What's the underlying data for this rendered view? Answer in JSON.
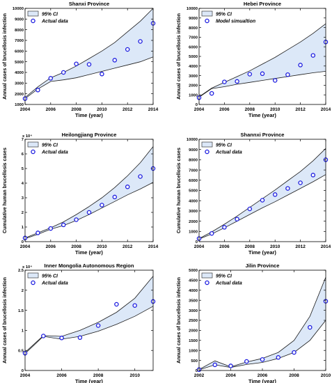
{
  "chart_data": [
    {
      "type": "line",
      "title": "Shanxi Province",
      "xlabel": "Time (year)",
      "ylabel": "Annual cases of brucellosis infection",
      "xlim": [
        2004,
        2014
      ],
      "ylim": [
        1000,
        10000
      ],
      "xticks": [
        2004,
        2006,
        2008,
        2010,
        2012,
        2014
      ],
      "yticks": [
        1000,
        2000,
        3000,
        4000,
        5000,
        6000,
        7000,
        8000,
        9000,
        10000
      ],
      "yexponent": "",
      "legend": {
        "ci": "95% CI",
        "points": "Actual data",
        "position": "top-left"
      },
      "x": [
        2004,
        2005,
        2006,
        2007,
        2008,
        2009,
        2010,
        2011,
        2012,
        2013,
        2014
      ],
      "upper": [
        1650,
        2650,
        3500,
        4000,
        4600,
        5300,
        6000,
        6800,
        7800,
        8800,
        10000
      ],
      "lower": [
        1550,
        2450,
        3150,
        3300,
        3500,
        3800,
        4100,
        4400,
        4700,
        5000,
        5450
      ],
      "points": [
        1550,
        2350,
        3450,
        4000,
        4800,
        4750,
        3850,
        5150,
        6150,
        6900,
        8600
      ]
    },
    {
      "type": "line",
      "title": "Hebei Province",
      "xlabel": "Time (year)",
      "ylabel": "Annual cases of brucellosis infection",
      "xlim": [
        2004,
        2014
      ],
      "ylim": [
        0,
        10000
      ],
      "xticks": [
        2004,
        2006,
        2008,
        2010,
        2012,
        2014
      ],
      "yticks": [
        0,
        1000,
        2000,
        3000,
        4000,
        5000,
        6000,
        7000,
        8000,
        9000,
        10000
      ],
      "yexponent": "",
      "legend": {
        "ci": "95% CI",
        "points": "Model simualtion",
        "position": "top-left"
      },
      "x": [
        2004,
        2005,
        2006,
        2007,
        2008,
        2009,
        2010,
        2011,
        2012,
        2013,
        2014
      ],
      "upper": [
        800,
        1700,
        2300,
        2900,
        3500,
        4200,
        4900,
        5700,
        6500,
        7400,
        8400
      ],
      "lower": [
        750,
        1650,
        1850,
        2100,
        2300,
        2500,
        2700,
        2900,
        3100,
        3300,
        3450
      ],
      "points": [
        700,
        1150,
        2350,
        2400,
        3150,
        3200,
        2500,
        3100,
        4100,
        5100,
        6500
      ]
    },
    {
      "type": "line",
      "title": "Heilongjiang Province",
      "xlabel": "Time (year)",
      "ylabel": "Cumulative human brucellosis cases",
      "xlim": [
        2004,
        2014
      ],
      "ylim": [
        0,
        7
      ],
      "xticks": [
        2004,
        2006,
        2008,
        2010,
        2012,
        2014
      ],
      "yticks": [
        0,
        1,
        2,
        3,
        4,
        5,
        6,
        7
      ],
      "yexponent": "x 10⁴",
      "legend": {
        "ci": "95% CI",
        "points": "Actual data",
        "position": "top-left"
      },
      "x": [
        2004,
        2005,
        2006,
        2007,
        2008,
        2009,
        2010,
        2011,
        2012,
        2013,
        2014
      ],
      "upper": [
        0.25,
        0.6,
        0.95,
        1.35,
        1.85,
        2.4,
        3.0,
        3.7,
        4.5,
        5.4,
        6.5
      ],
      "lower": [
        0.2,
        0.5,
        0.85,
        1.1,
        1.45,
        1.85,
        2.3,
        2.75,
        3.2,
        3.6,
        4.05
      ],
      "points": [
        0.25,
        0.6,
        0.9,
        1.15,
        1.5,
        2.0,
        2.5,
        3.05,
        3.75,
        4.45,
        5.0
      ]
    },
    {
      "type": "line",
      "title": "Shannxi Province",
      "xlabel": "Time (year)",
      "ylabel": "Cumulative human brucellosis cases",
      "xlim": [
        2004,
        2014
      ],
      "ylim": [
        0,
        10000
      ],
      "xticks": [
        2004,
        2006,
        2008,
        2010,
        2012,
        2014
      ],
      "yticks": [
        0,
        1000,
        2000,
        3000,
        4000,
        5000,
        6000,
        7000,
        8000,
        9000,
        10000
      ],
      "yexponent": "",
      "legend": {
        "ci": "95% CI",
        "points": "Actual data",
        "position": "top-left"
      },
      "x": [
        2004,
        2005,
        2006,
        2007,
        2008,
        2009,
        2010,
        2011,
        2012,
        2013,
        2014
      ],
      "upper": [
        300,
        950,
        1700,
        2500,
        3350,
        4200,
        5050,
        5950,
        6850,
        7900,
        9100
      ],
      "lower": [
        250,
        750,
        1350,
        2000,
        2650,
        3300,
        3900,
        4550,
        5200,
        5850,
        6550
      ],
      "points": [
        300,
        800,
        1400,
        2200,
        3200,
        4050,
        4600,
        5200,
        5750,
        6500,
        8000
      ]
    },
    {
      "type": "line",
      "title": "Inner Mongolia Autonomous Region",
      "xlabel": "Time (year)",
      "ylabel": "Annual cases of brucellosis infection",
      "xlim": [
        2004,
        2011
      ],
      "ylim": [
        0,
        2.5
      ],
      "xticks": [
        2004,
        2006,
        2008,
        2010
      ],
      "yticks": [
        0,
        0.5,
        1,
        1.5,
        2,
        2.5
      ],
      "yexponent": "x 10⁴",
      "legend": {
        "ci": "95% CI",
        "points": "Actual data",
        "position": "top-left"
      },
      "x": [
        2004,
        2005,
        2006,
        2007,
        2008,
        2009,
        2010,
        2011
      ],
      "upper": [
        0.45,
        0.87,
        0.85,
        1.0,
        1.2,
        1.45,
        1.8,
        2.35
      ],
      "lower": [
        0.42,
        0.85,
        0.78,
        0.85,
        0.98,
        1.15,
        1.35,
        1.6
      ],
      "points": [
        0.43,
        0.86,
        0.81,
        0.82,
        1.12,
        1.65,
        1.62,
        1.72
      ]
    },
    {
      "type": "line",
      "title": "Jilin Province",
      "xlabel": "Time (year)",
      "ylabel": "Annual cases of brucellosis infection",
      "xlim": [
        2002,
        2010
      ],
      "ylim": [
        0,
        5000
      ],
      "xticks": [
        2002,
        2004,
        2006,
        2008,
        2010
      ],
      "yticks": [
        0,
        500,
        1000,
        1500,
        2000,
        2500,
        3000,
        3500,
        4000,
        4500,
        5000
      ],
      "yexponent": "",
      "legend": {
        "ci": "95% CI",
        "points": "Actual data",
        "position": "top-left"
      },
      "x": [
        2002,
        2003,
        2004,
        2005,
        2006,
        2007,
        2008,
        2009,
        2010
      ],
      "upper": [
        50,
        480,
        180,
        420,
        600,
        900,
        1500,
        2700,
        4650
      ],
      "lower": [
        30,
        280,
        150,
        300,
        400,
        600,
        900,
        1500,
        2500
      ],
      "points": [
        40,
        280,
        230,
        450,
        550,
        650,
        900,
        2150,
        3450
      ]
    }
  ]
}
